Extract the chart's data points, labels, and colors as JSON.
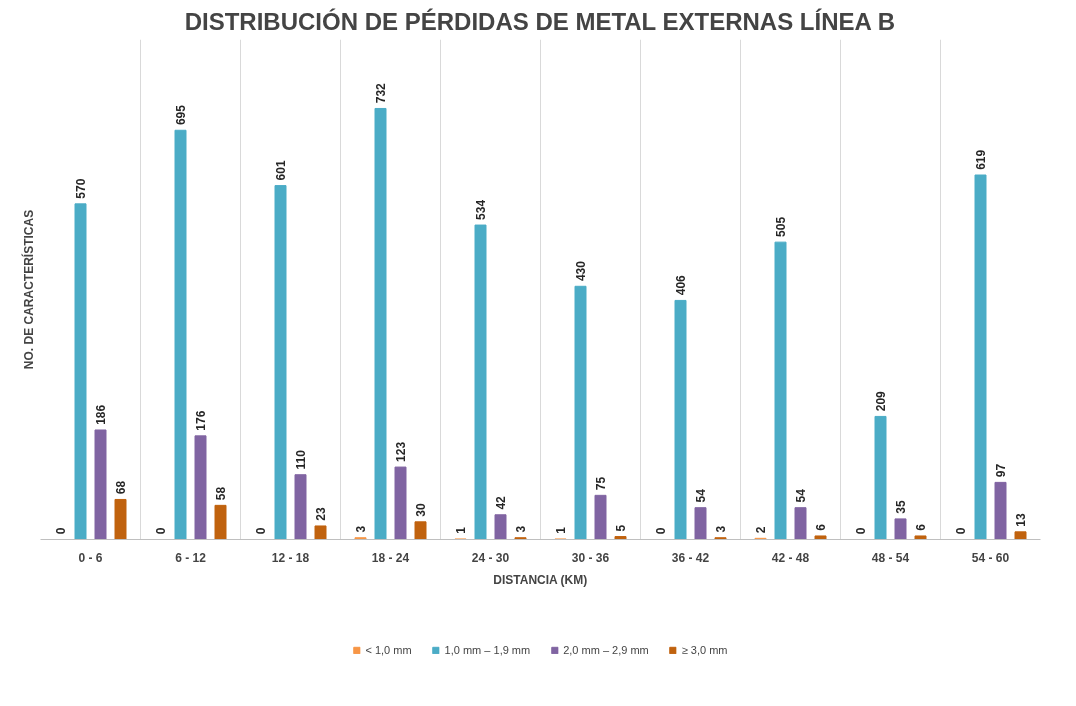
{
  "chart_data": {
    "type": "bar",
    "title": "DISTRIBUCIÓN DE PÉRDIDAS DE METAL EXTERNAS LÍNEA B",
    "xlabel": "DISTANCIA (KM)",
    "ylabel": "NO. DE CARACTERÍSTICAS",
    "categories": [
      "0 - 6",
      "6 - 12",
      "12 - 18",
      "18 - 24",
      "24 - 30",
      "30 - 36",
      "36 - 42",
      "42 - 48",
      "48 - 54",
      "54 - 60"
    ],
    "series": [
      {
        "name": "< 1,0 mm",
        "color": "#f79646",
        "values": [
          0,
          0,
          0,
          3,
          1,
          1,
          0,
          2,
          0,
          0
        ]
      },
      {
        "name": "1,0 mm – 1,9 mm",
        "color": "#4bacc6",
        "values": [
          570,
          695,
          601,
          732,
          534,
          430,
          406,
          505,
          209,
          619
        ]
      },
      {
        "name": "2,0 mm – 2,9 mm",
        "color": "#8064a2",
        "values": [
          186,
          176,
          110,
          123,
          42,
          75,
          54,
          54,
          35,
          97
        ]
      },
      {
        "name": "≥ 3,0 mm",
        "color": "#c0620e",
        "values": [
          68,
          58,
          23,
          30,
          3,
          5,
          3,
          6,
          6,
          13
        ]
      }
    ],
    "data_labels": true,
    "grid": "x",
    "legend": "bottom"
  }
}
